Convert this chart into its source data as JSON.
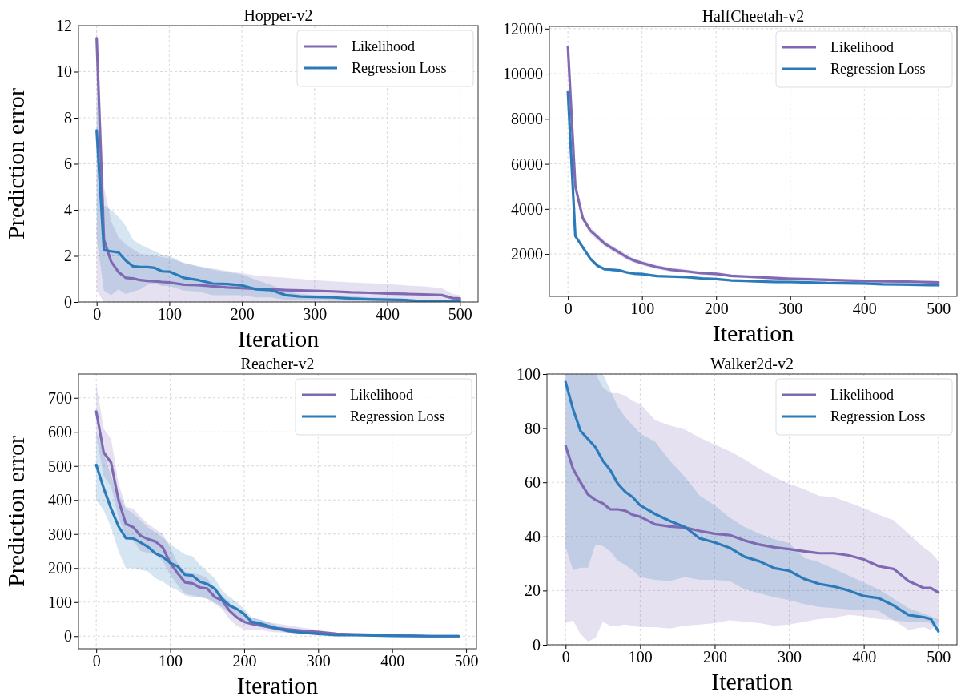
{
  "chart_data": [
    {
      "type": "line",
      "title": "Hopper-v2",
      "xlabel": "Iteration",
      "ylabel": "Prediction error",
      "xlim": [
        -25,
        525
      ],
      "xticks": [
        0,
        100,
        200,
        300,
        400,
        500
      ],
      "ylim": [
        0,
        12
      ],
      "yticks": [
        0,
        2,
        4,
        6,
        8,
        10,
        12
      ],
      "grid": true,
      "legend": "top right",
      "series": [
        {
          "name": "Likelihood",
          "color": "#7f69b3",
          "x": [
            0,
            10,
            20,
            30,
            40,
            50,
            60,
            70,
            80,
            90,
            100,
            120,
            140,
            160,
            180,
            200,
            220,
            240,
            260,
            280,
            300,
            325,
            350,
            375,
            400,
            425,
            450,
            475,
            490,
            500
          ],
          "values": [
            11.45,
            2.7,
            1.75,
            1.3,
            1.05,
            1.02,
            0.95,
            0.92,
            0.9,
            0.87,
            0.85,
            0.75,
            0.73,
            0.68,
            0.63,
            0.6,
            0.57,
            0.55,
            0.52,
            0.5,
            0.48,
            0.46,
            0.42,
            0.4,
            0.37,
            0.35,
            0.33,
            0.3,
            0.17,
            0.15
          ],
          "upper": [
            12,
            5,
            3.5,
            2.8,
            2.5,
            2.3,
            2.1,
            2.05,
            2.0,
            1.95,
            1.9,
            1.7,
            1.55,
            1.45,
            1.35,
            1.25,
            1.15,
            1.1,
            1.05,
            1.0,
            0.95,
            0.9,
            0.85,
            0.82,
            0.78,
            0.72,
            0.68,
            0.6,
            0.35,
            0.3
          ],
          "lower": [
            0.5,
            0,
            0,
            0,
            0,
            0,
            0,
            0,
            0,
            0,
            0,
            0,
            0,
            0,
            0,
            0,
            0,
            0,
            0,
            0,
            0,
            0,
            0,
            0,
            0,
            0,
            0,
            0,
            0,
            0
          ]
        },
        {
          "name": "Regression Loss",
          "color": "#2b7bba",
          "x": [
            0,
            10,
            20,
            30,
            40,
            50,
            60,
            70,
            80,
            90,
            100,
            120,
            140,
            160,
            180,
            200,
            220,
            240,
            260,
            280,
            300,
            325,
            350,
            375,
            400,
            425,
            450,
            475,
            490,
            500
          ],
          "values": [
            7.45,
            2.25,
            2.2,
            2.15,
            1.8,
            1.55,
            1.52,
            1.52,
            1.48,
            1.33,
            1.32,
            1.05,
            0.95,
            0.8,
            0.78,
            0.72,
            0.55,
            0.52,
            0.3,
            0.24,
            0.22,
            0.2,
            0.15,
            0.12,
            0.1,
            0.08,
            0.03,
            0.03,
            0.03,
            0.05
          ],
          "upper": [
            9,
            4.2,
            4.0,
            3.7,
            3.3,
            2.7,
            2.5,
            2.35,
            2.2,
            2.05,
            2.0,
            1.7,
            1.55,
            1.4,
            1.3,
            1.2,
            0.95,
            0.75,
            0.45,
            0.35,
            0.3,
            0.28,
            0.25,
            0.2,
            0.18,
            0.15,
            0.08,
            0.06,
            0.05,
            0.08
          ],
          "lower": [
            2.8,
            0.5,
            0.3,
            0.55,
            0.35,
            0.45,
            0.55,
            0.75,
            0.8,
            0.7,
            0.7,
            0.5,
            0.45,
            0.3,
            0.3,
            0.3,
            0.2,
            0.2,
            0.1,
            0.1,
            0.1,
            0.05,
            0.05,
            0.03,
            0.02,
            0.01,
            0,
            0,
            0,
            0
          ]
        }
      ]
    },
    {
      "type": "line",
      "title": "HalfCheetah-v2",
      "xlabel": "Iteration",
      "xlim": [
        -25,
        525
      ],
      "xticks": [
        0,
        100,
        200,
        300,
        400,
        500
      ],
      "ylim": [
        120,
        12100
      ],
      "yticks": [
        2000,
        4000,
        6000,
        8000,
        10000,
        12000
      ],
      "grid": true,
      "legend": "top right",
      "series": [
        {
          "name": "Likelihood",
          "color": "#7f69b3",
          "x": [
            0,
            10,
            20,
            30,
            40,
            50,
            60,
            70,
            80,
            90,
            100,
            120,
            140,
            160,
            180,
            200,
            220,
            240,
            260,
            280,
            300,
            325,
            350,
            375,
            400,
            425,
            450,
            475,
            490,
            500
          ],
          "values": [
            11200,
            5000,
            3600,
            3050,
            2750,
            2450,
            2250,
            2050,
            1850,
            1700,
            1600,
            1420,
            1300,
            1230,
            1150,
            1120,
            1030,
            1000,
            970,
            930,
            900,
            880,
            850,
            830,
            810,
            790,
            780,
            760,
            750,
            740
          ],
          "upper": [
            11400,
            5200,
            3750,
            3200,
            2880,
            2580,
            2370,
            2170,
            1960,
            1800,
            1700,
            1510,
            1390,
            1310,
            1230,
            1200,
            1100,
            1070,
            1040,
            1000,
            970,
            950,
            920,
            890,
            870,
            850,
            840,
            820,
            810,
            800
          ],
          "lower": [
            11000,
            4800,
            3450,
            2900,
            2620,
            2320,
            2130,
            1930,
            1740,
            1600,
            1500,
            1330,
            1210,
            1150,
            1070,
            1040,
            960,
            930,
            900,
            860,
            830,
            810,
            780,
            770,
            750,
            730,
            720,
            700,
            690,
            680
          ]
        },
        {
          "name": "Regression Loss",
          "color": "#2b7bba",
          "x": [
            0,
            10,
            20,
            30,
            40,
            50,
            60,
            70,
            80,
            90,
            100,
            120,
            140,
            160,
            180,
            200,
            220,
            240,
            260,
            280,
            300,
            325,
            350,
            375,
            400,
            425,
            450,
            475,
            490,
            500
          ],
          "values": [
            9200,
            2800,
            2300,
            1800,
            1480,
            1320,
            1300,
            1270,
            1180,
            1130,
            1110,
            1020,
            1000,
            980,
            920,
            890,
            830,
            810,
            780,
            760,
            760,
            740,
            710,
            700,
            690,
            660,
            650,
            630,
            620,
            620
          ],
          "upper": [
            9300,
            2880,
            2370,
            1860,
            1540,
            1380,
            1360,
            1330,
            1240,
            1190,
            1170,
            1080,
            1060,
            1040,
            980,
            950,
            890,
            870,
            840,
            820,
            820,
            800,
            770,
            760,
            750,
            720,
            710,
            690,
            680,
            680
          ],
          "lower": [
            9100,
            2720,
            2230,
            1740,
            1420,
            1260,
            1240,
            1210,
            1120,
            1070,
            1050,
            960,
            940,
            920,
            860,
            830,
            770,
            750,
            720,
            700,
            700,
            680,
            650,
            640,
            630,
            600,
            590,
            570,
            560,
            560
          ]
        }
      ]
    },
    {
      "type": "line",
      "title": "Reacher-v2",
      "xlabel": "Iteration",
      "ylabel": "Prediction error",
      "xlim": [
        -24,
        514
      ],
      "xticks": [
        0,
        100,
        200,
        300,
        400,
        500
      ],
      "ylim": [
        -37,
        770
      ],
      "yticks": [
        0,
        100,
        200,
        300,
        400,
        500,
        600,
        700
      ],
      "grid": true,
      "legend": "top right",
      "series": [
        {
          "name": "Likelihood",
          "color": "#7f69b3",
          "x": [
            0,
            10,
            20,
            30,
            40,
            50,
            60,
            70,
            80,
            90,
            100,
            110,
            120,
            130,
            140,
            150,
            160,
            170,
            180,
            190,
            200,
            210,
            220,
            240,
            260,
            280,
            300,
            325,
            350,
            375,
            400,
            425,
            450,
            475,
            490
          ],
          "values": [
            660,
            540,
            510,
            400,
            330,
            320,
            295,
            285,
            278,
            260,
            215,
            185,
            158,
            155,
            143,
            140,
            115,
            105,
            75,
            55,
            42,
            36,
            32,
            24,
            20,
            16,
            12,
            7,
            5,
            4,
            2,
            1,
            0,
            0,
            0
          ],
          "upper": [
            740,
            610,
            580,
            450,
            380,
            375,
            350,
            330,
            315,
            300,
            260,
            215,
            190,
            185,
            180,
            170,
            140,
            120,
            100,
            75,
            60,
            55,
            48,
            38,
            32,
            25,
            18,
            10,
            7,
            5,
            3,
            2,
            1,
            1,
            0
          ],
          "lower": [
            590,
            470,
            440,
            350,
            290,
            280,
            250,
            245,
            240,
            220,
            180,
            150,
            125,
            120,
            115,
            110,
            95,
            80,
            50,
            30,
            20,
            18,
            18,
            12,
            10,
            8,
            6,
            4,
            3,
            2,
            1,
            0,
            0,
            0,
            0
          ]
        },
        {
          "name": "Regression Loss",
          "color": "#2b7bba",
          "x": [
            0,
            10,
            20,
            30,
            40,
            50,
            60,
            70,
            80,
            90,
            100,
            110,
            120,
            130,
            140,
            150,
            160,
            170,
            180,
            190,
            200,
            210,
            220,
            240,
            260,
            280,
            300,
            325,
            350,
            375,
            400,
            425,
            450,
            475,
            490
          ],
          "values": [
            503,
            435,
            375,
            323,
            288,
            287,
            275,
            262,
            243,
            233,
            215,
            205,
            180,
            178,
            160,
            153,
            140,
            110,
            90,
            80,
            65,
            42,
            38,
            25,
            15,
            10,
            7,
            3,
            3,
            2,
            1,
            1,
            0,
            0,
            0
          ],
          "upper": [
            600,
            540,
            470,
            420,
            375,
            360,
            340,
            320,
            305,
            290,
            270,
            255,
            240,
            235,
            210,
            190,
            170,
            135,
            115,
            100,
            80,
            55,
            50,
            35,
            22,
            15,
            10,
            5,
            4,
            3,
            2,
            1,
            1,
            0,
            0
          ],
          "lower": [
            400,
            370,
            320,
            250,
            200,
            200,
            195,
            190,
            170,
            160,
            145,
            135,
            120,
            115,
            115,
            110,
            100,
            85,
            70,
            55,
            45,
            35,
            30,
            18,
            10,
            6,
            4,
            2,
            2,
            1,
            0,
            0,
            0,
            0,
            0
          ]
        }
      ]
    },
    {
      "type": "line",
      "title": "Walker2d-v2",
      "xlabel": "Iteration",
      "xlim": [
        -25,
        525
      ],
      "xticks": [
        0,
        100,
        200,
        300,
        400,
        500
      ],
      "ylim": [
        0,
        100
      ],
      "yticks": [
        0,
        20,
        40,
        60,
        80,
        100
      ],
      "grid": true,
      "legend": "top right",
      "series": [
        {
          "name": "Likelihood",
          "color": "#7f69b3",
          "x": [
            0,
            10,
            20,
            30,
            40,
            50,
            60,
            70,
            80,
            90,
            100,
            120,
            140,
            160,
            180,
            200,
            220,
            240,
            260,
            280,
            300,
            320,
            340,
            360,
            380,
            400,
            420,
            440,
            460,
            480,
            490,
            500
          ],
          "values": [
            73.5,
            65,
            60,
            55.5,
            53.5,
            52.2,
            50,
            50,
            49.5,
            48,
            47.3,
            44.5,
            43.7,
            43.3,
            42,
            41,
            40.5,
            38.5,
            37,
            36,
            35.3,
            34.5,
            33.8,
            33.8,
            33,
            31.5,
            29,
            28,
            23.5,
            21,
            21,
            19.3
          ],
          "upper": [
            100,
            100,
            100,
            100,
            100,
            95,
            93,
            93,
            92,
            90,
            89,
            83,
            81,
            79.5,
            76.5,
            74,
            71.5,
            68.5,
            65,
            62,
            59.5,
            57.5,
            55,
            54.5,
            52.5,
            50.5,
            48,
            46,
            41,
            36,
            34,
            31
          ],
          "lower": [
            8,
            9,
            4,
            1.2,
            2.5,
            8.5,
            7,
            7,
            7.5,
            7,
            6.5,
            6.5,
            6,
            7,
            7.5,
            8,
            9,
            8.5,
            8,
            7,
            7.5,
            8.5,
            9.5,
            10,
            11,
            10.5,
            9.5,
            9,
            5.5,
            6.5,
            5.5,
            8
          ]
        },
        {
          "name": "Regression Loss",
          "color": "#2b7bba",
          "x": [
            0,
            10,
            20,
            30,
            40,
            50,
            60,
            70,
            80,
            90,
            100,
            120,
            140,
            160,
            180,
            200,
            220,
            240,
            260,
            280,
            300,
            320,
            340,
            360,
            380,
            400,
            420,
            440,
            460,
            480,
            490,
            500
          ],
          "values": [
            97,
            87,
            79,
            76,
            73,
            68,
            64.5,
            59.5,
            56.5,
            54.5,
            51.5,
            48.3,
            45.7,
            43.5,
            39.3,
            37.8,
            35.8,
            32.5,
            30.8,
            28.3,
            27.3,
            24.3,
            22.5,
            21.5,
            20,
            18,
            17.2,
            14.5,
            11,
            10.2,
            9.5,
            5
          ],
          "upper": [
            100,
            100,
            100,
            100,
            100,
            100,
            94,
            88,
            84,
            81,
            78,
            75,
            68,
            62,
            55,
            51.5,
            47,
            43.5,
            41,
            39,
            37.5,
            32,
            30.5,
            28,
            25.5,
            23,
            20.5,
            17,
            13.5,
            11.5,
            10.5,
            9.5
          ],
          "lower": [
            36,
            27.5,
            28.5,
            28.5,
            37,
            36.5,
            34.5,
            31,
            29.5,
            27.5,
            25,
            24,
            23.5,
            25,
            24,
            24,
            23.5,
            20.5,
            19,
            17.5,
            16.5,
            15,
            14,
            13.5,
            13,
            13,
            12.5,
            9,
            8.5,
            8.5,
            8,
            4
          ]
        }
      ]
    }
  ]
}
